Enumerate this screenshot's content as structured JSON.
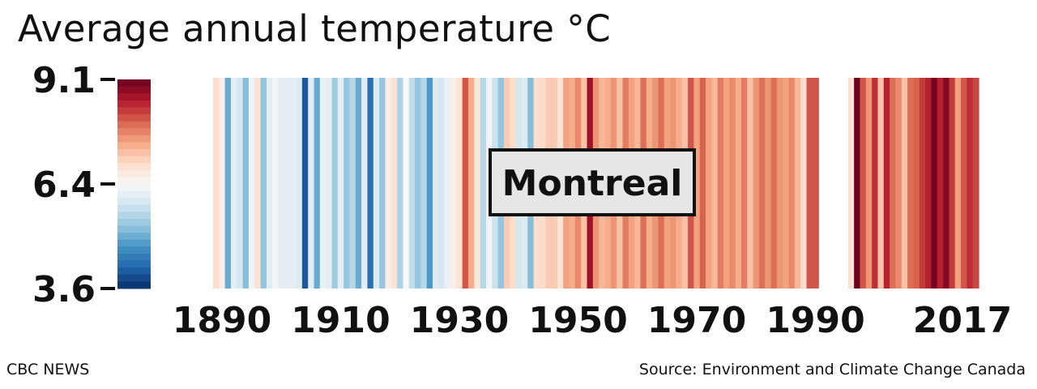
{
  "title": "Average annual temperature °C",
  "footer": {
    "brand": "CBC NEWS",
    "source": "Source: Environment and Climate Change Canada"
  },
  "chart_data": {
    "type": "heatmap",
    "title": "Average annual temperature °C",
    "location_label": "Montreal",
    "color_scale": {
      "min": 3.6,
      "mid": 6.4,
      "max": 9.1,
      "ticks": [
        "9.1",
        "6.4",
        "3.6"
      ],
      "colors": [
        "#08306b",
        "#2166ac",
        "#4393c3",
        "#92c5de",
        "#d1e5f0",
        "#f7f7f7",
        "#fddbc7",
        "#f4a582",
        "#d6604d",
        "#b2182b",
        "#67001f"
      ]
    },
    "x_tick_labels": [
      "1890",
      "1910",
      "1930",
      "1950",
      "1970",
      "1990",
      "2017"
    ],
    "x_ticks": [
      1890,
      1910,
      1930,
      1950,
      1970,
      1990,
      2017
    ],
    "x_range": [
      1889,
      2017
    ],
    "missing_years": [
      1991,
      1992,
      1993,
      1994,
      1995
    ],
    "years": [
      1889,
      1890,
      1891,
      1892,
      1893,
      1894,
      1895,
      1896,
      1897,
      1898,
      1899,
      1900,
      1901,
      1902,
      1903,
      1904,
      1905,
      1906,
      1907,
      1908,
      1909,
      1910,
      1911,
      1912,
      1913,
      1914,
      1915,
      1916,
      1917,
      1918,
      1919,
      1920,
      1921,
      1922,
      1923,
      1924,
      1925,
      1926,
      1927,
      1928,
      1929,
      1930,
      1931,
      1932,
      1933,
      1934,
      1935,
      1936,
      1937,
      1938,
      1939,
      1940,
      1941,
      1942,
      1943,
      1944,
      1945,
      1946,
      1947,
      1948,
      1949,
      1950,
      1951,
      1952,
      1953,
      1954,
      1955,
      1956,
      1957,
      1958,
      1959,
      1960,
      1961,
      1962,
      1963,
      1964,
      1965,
      1966,
      1967,
      1968,
      1969,
      1970,
      1971,
      1972,
      1973,
      1974,
      1975,
      1976,
      1977,
      1978,
      1979,
      1980,
      1981,
      1982,
      1983,
      1984,
      1985,
      1986,
      1987,
      1988,
      1989,
      1990,
      1996,
      1997,
      1998,
      1999,
      2000,
      2001,
      2002,
      2003,
      2004,
      2005,
      2006,
      2007,
      2008,
      2009,
      2010,
      2011,
      2012,
      2013,
      2014,
      2015,
      2016,
      2017
    ],
    "values": [
      6.9,
      6.6,
      5.0,
      6.1,
      5.9,
      5.2,
      6.3,
      6.8,
      5.3,
      6.1,
      6.3,
      6.1,
      6.1,
      6.1,
      6.0,
      4.0,
      6.1,
      5.0,
      6.2,
      6.1,
      5.4,
      6.1,
      5.3,
      5.6,
      5.0,
      6.1,
      4.3,
      6.0,
      5.3,
      6.6,
      6.8,
      5.5,
      6.4,
      5.7,
      5.3,
      5.6,
      4.8,
      6.0,
      5.9,
      6.2,
      6.6,
      6.8,
      8.1,
      7.4,
      6.7,
      5.6,
      6.3,
      5.8,
      5.3,
      7.1,
      6.9,
      5.9,
      6.0,
      5.2,
      6.9,
      6.9,
      7.1,
      7.1,
      6.8,
      7.5,
      7.4,
      7.7,
      7.2,
      8.7,
      7.6,
      7.3,
      7.4,
      7.6,
      7.2,
      7.8,
      7.5,
      7.3,
      7.9,
      7.4,
      7.6,
      7.9,
      7.5,
      7.6,
      7.4,
      7.2,
      8.1,
      7.5,
      8.0,
      7.5,
      7.3,
      7.8,
      7.5,
      7.7,
      7.4,
      7.8,
      7.2,
      7.6,
      7.9,
      7.6,
      7.9,
      7.6,
      7.5,
      7.7,
      7.3,
      6.9,
      8.1,
      8.1,
      6.8,
      9.1,
      8.1,
      7.6,
      8.4,
      7.2,
      8.5,
      7.9,
      7.7,
      7.2,
      7.9,
      8.0,
      8.3,
      8.5,
      9.0,
      8.5,
      8.9,
      8.3,
      7.5,
      8.1,
      8.4,
      8.2
    ]
  }
}
